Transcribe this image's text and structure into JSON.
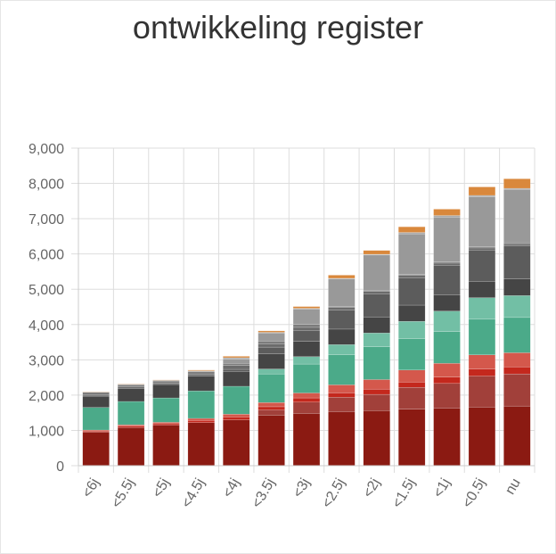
{
  "chart_data": {
    "type": "bar",
    "stacked": true,
    "title": "ontwikkeling register",
    "xlabel": "",
    "ylabel": "",
    "ylim": [
      0,
      9000
    ],
    "yticks": [
      "0",
      "1,000",
      "2,000",
      "3,000",
      "4,000",
      "5,000",
      "6,000",
      "7,000",
      "8,000",
      "9,000"
    ],
    "categories": [
      "<6j",
      "<5.5j",
      "<5j",
      "<4.5j",
      "<4j",
      "<3.5j",
      "<3j",
      "<2.5j",
      "<2j",
      "<1.5j",
      "<1j",
      "<0.5j",
      "nu"
    ],
    "grid": true,
    "legend": "none",
    "series": [
      {
        "color": "#8b1a12",
        "values": [
          950,
          1080,
          1150,
          1220,
          1300,
          1430,
          1480,
          1530,
          1560,
          1600,
          1630,
          1660,
          1690
        ]
      },
      {
        "color": "#a1403a",
        "values": [
          0,
          0,
          0,
          0,
          0,
          150,
          320,
          410,
          460,
          620,
          700,
          880,
          910
        ]
      },
      {
        "color": "#c4281d",
        "values": [
          30,
          40,
          40,
          60,
          80,
          90,
          120,
          120,
          150,
          150,
          180,
          200,
          200
        ]
      },
      {
        "color": "#d4584c",
        "values": [
          30,
          40,
          40,
          60,
          80,
          120,
          140,
          230,
          270,
          340,
          390,
          400,
          400
        ]
      },
      {
        "color": "#4baa89",
        "values": [
          640,
          660,
          690,
          780,
          790,
          810,
          820,
          850,
          930,
          890,
          900,
          1010,
          1000
        ]
      },
      {
        "color": "#72bfa5",
        "values": [
          0,
          0,
          0,
          0,
          0,
          140,
          210,
          290,
          390,
          490,
          580,
          610,
          620
        ]
      },
      {
        "color": "#454545",
        "values": [
          320,
          370,
          380,
          420,
          420,
          430,
          430,
          440,
          450,
          460,
          460,
          460,
          470
        ]
      },
      {
        "color": "#5c5c5c",
        "values": [
          0,
          0,
          0,
          0,
          60,
          190,
          310,
          540,
          660,
          780,
          840,
          890,
          940
        ]
      },
      {
        "color": "#6b6b6b",
        "values": [
          30,
          40,
          40,
          60,
          110,
          90,
          90,
          70,
          70,
          60,
          60,
          60,
          60
        ]
      },
      {
        "color": "#7c7c7c",
        "values": [
          80,
          60,
          60,
          60,
          60,
          80,
          80,
          30,
          30,
          30,
          30,
          30,
          30
        ]
      },
      {
        "color": "#999999",
        "values": [
          0,
          0,
          0,
          0,
          120,
          230,
          430,
          780,
          1000,
          1150,
          1270,
          1420,
          1510
        ]
      },
      {
        "color": "#aaaaaa",
        "values": [
          10,
          20,
          20,
          30,
          40,
          20,
          30,
          20,
          20,
          40,
          50,
          40,
          30
        ]
      },
      {
        "color": "#d9883c",
        "values": [
          10,
          10,
          10,
          20,
          40,
          40,
          50,
          90,
          110,
          160,
          180,
          240,
          270
        ]
      }
    ]
  }
}
